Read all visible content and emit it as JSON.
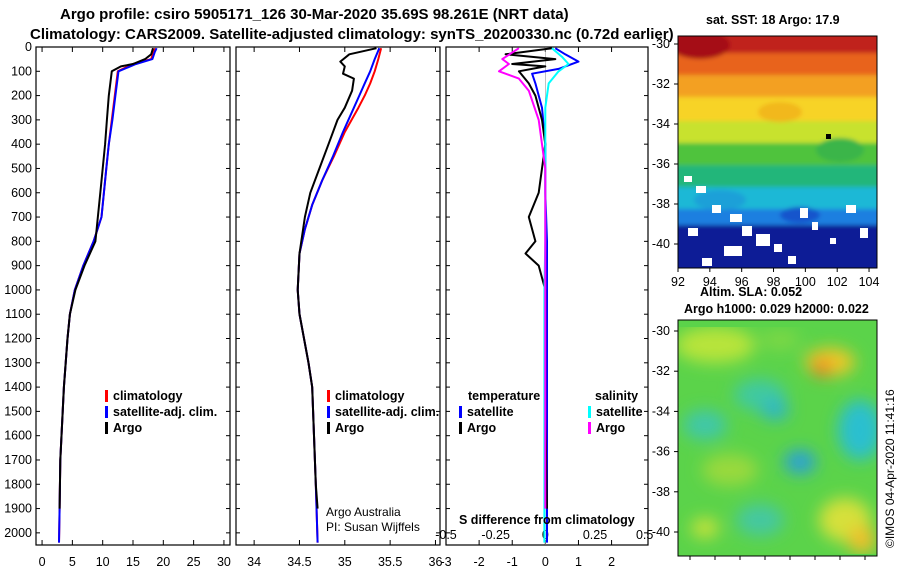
{
  "header": {
    "title_line1": "Argo profile: csiro 5905171_126 30-Mar-2020 35.69S 98.261E (NRT data)",
    "title_line2": "Climatology: CARS2009. Satellite-adjusted climatology: synTS_20200330.nc (0.72d earlier)"
  },
  "colors": {
    "climatology": "#ff0000",
    "satellite_adj": "#0000ff",
    "argo": "#000000",
    "sal_satellite": "#00ffff",
    "sal_argo": "#ff00ff"
  },
  "chart_data": [
    {
      "type": "line",
      "name": "temperature-profile",
      "xlabel": "",
      "ylabel": "",
      "xlim": [
        -1,
        31
      ],
      "ylim": [
        2050,
        0
      ],
      "xticks": [
        "0",
        "5",
        "10",
        "15",
        "20",
        "25",
        "30"
      ],
      "yticks": [
        "0",
        "100",
        "200",
        "300",
        "400",
        "500",
        "600",
        "700",
        "800",
        "900",
        "1000",
        "1100",
        "1200",
        "1300",
        "1400",
        "1500",
        "1600",
        "1700",
        "1800",
        "1900",
        "2000"
      ],
      "legend": [
        "climatology",
        "satellite-adj. clim.",
        "Argo"
      ],
      "series": [
        {
          "name": "climatology",
          "color": "#ff0000",
          "x": [
            18.6,
            18.4,
            18.0,
            15.0,
            12.5,
            12.0,
            11.5,
            11.0,
            10.6,
            10.2,
            9.8,
            8.5,
            6.8,
            5.4,
            4.6,
            4.2,
            3.9,
            3.6,
            3.4,
            3.2,
            3.0,
            2.9,
            2.8
          ],
          "y": [
            5,
            20,
            50,
            70,
            100,
            200,
            300,
            400,
            500,
            600,
            700,
            800,
            900,
            1000,
            1100,
            1200,
            1300,
            1400,
            1500,
            1600,
            1700,
            1900,
            2040
          ]
        },
        {
          "name": "satellite-adj. clim.",
          "color": "#0000ff",
          "x": [
            18.9,
            18.6,
            18.2,
            15.5,
            12.6,
            12.1,
            11.6,
            11.0,
            10.6,
            10.2,
            9.8,
            8.5,
            6.8,
            5.4,
            4.6,
            4.2,
            3.9,
            3.6,
            3.4,
            3.2,
            3.0,
            2.9,
            2.8
          ],
          "y": [
            5,
            20,
            50,
            70,
            100,
            200,
            300,
            400,
            500,
            600,
            700,
            800,
            900,
            1000,
            1100,
            1200,
            1300,
            1400,
            1500,
            1600,
            1700,
            1900,
            2040
          ]
        },
        {
          "name": "Argo",
          "color": "#000000",
          "x": [
            18.3,
            18.0,
            17.0,
            15.0,
            13.0,
            11.5,
            11.0,
            10.7,
            10.4,
            10.0,
            9.6,
            8.8,
            7.0,
            5.5,
            4.6,
            4.2,
            3.9,
            3.6,
            3.4,
            3.2,
            3.0,
            2.9
          ],
          "y": [
            5,
            30,
            50,
            70,
            80,
            100,
            200,
            300,
            400,
            500,
            600,
            800,
            900,
            1000,
            1100,
            1200,
            1300,
            1400,
            1500,
            1600,
            1700,
            1900
          ]
        }
      ]
    },
    {
      "type": "line",
      "name": "salinity-profile",
      "xlabel": "",
      "ylabel": "",
      "xlim": [
        33.8,
        36.05
      ],
      "ylim": [
        2050,
        0
      ],
      "xticks": [
        "34",
        "34.5",
        "35",
        "35.5",
        "36"
      ],
      "legend": [
        "climatology",
        "satellite-adj. clim.",
        "Argo"
      ],
      "annotations": [
        "Argo Australia",
        "PI: Susan Wijffels"
      ],
      "series": [
        {
          "name": "climatology",
          "color": "#ff0000",
          "x": [
            35.4,
            35.37,
            35.33,
            35.28,
            35.22,
            35.15,
            35.0,
            34.88,
            34.75,
            34.64,
            34.56,
            34.5,
            34.48,
            34.5,
            34.55,
            34.6,
            34.64,
            34.66,
            34.68,
            34.7
          ],
          "y": [
            5,
            50,
            100,
            150,
            200,
            250,
            350,
            450,
            550,
            650,
            750,
            850,
            1000,
            1100,
            1200,
            1300,
            1400,
            1600,
            1800,
            2040
          ]
        },
        {
          "name": "satellite-adj. clim.",
          "color": "#0000ff",
          "x": [
            35.38,
            35.33,
            35.28,
            35.22,
            35.16,
            35.1,
            34.98,
            34.87,
            34.75,
            34.64,
            34.56,
            34.5,
            34.48,
            34.5,
            34.55,
            34.6,
            34.64,
            34.66,
            34.68,
            34.7
          ],
          "y": [
            5,
            50,
            100,
            150,
            200,
            250,
            350,
            450,
            550,
            650,
            750,
            850,
            1000,
            1100,
            1200,
            1300,
            1400,
            1600,
            1800,
            2040
          ]
        },
        {
          "name": "Argo",
          "color": "#000000",
          "x": [
            35.35,
            35.05,
            34.95,
            35.0,
            34.98,
            35.1,
            35.08,
            35.0,
            34.92,
            34.82,
            34.72,
            34.62,
            34.56,
            34.5,
            34.48,
            34.5,
            34.55,
            34.6,
            34.64,
            34.66,
            34.68,
            34.7
          ],
          "y": [
            5,
            30,
            60,
            80,
            110,
            130,
            180,
            250,
            300,
            400,
            500,
            600,
            700,
            850,
            1000,
            1100,
            1200,
            1300,
            1400,
            1600,
            1800,
            1900
          ]
        }
      ]
    },
    {
      "type": "line",
      "name": "difference-from-climatology",
      "xlabel": "S difference from climatology",
      "xlim": [
        -3,
        3.1
      ],
      "ylim": [
        2050,
        0
      ],
      "xticks": [
        "-3",
        "-2",
        "-1",
        "0",
        "1",
        "2"
      ],
      "top_xticks": [
        "-0.5",
        "-0.25",
        "0",
        "0.25",
        "0.5"
      ],
      "legend": {
        "temperature_title": "temperature",
        "salinity_title": "salinity",
        "temperature_items": [
          "satellite",
          "Argo"
        ],
        "salinity_items": [
          "satellite",
          "Argo"
        ]
      },
      "series": [
        {
          "name": "temperature-satellite",
          "color": "#0000ff",
          "x": [
            0.3,
            0.6,
            1.0,
            0.4,
            -0.4,
            -0.3,
            -0.1,
            0.0,
            0.0,
            0.05,
            0.05,
            0.05,
            0.05,
            0.05,
            0.05,
            0.05
          ],
          "y": [
            5,
            30,
            60,
            90,
            110,
            150,
            250,
            400,
            600,
            800,
            1000,
            1200,
            1400,
            1600,
            1800,
            2040
          ]
        },
        {
          "name": "temperature-Argo",
          "color": "#000000",
          "x": [
            0.2,
            -1.2,
            0.3,
            -1.0,
            0.0,
            -0.8,
            -0.5,
            -0.3,
            -0.1,
            0.0,
            -0.2,
            -0.5,
            -0.3,
            -0.6,
            -0.2,
            0.0,
            0.0,
            0.05
          ],
          "y": [
            5,
            30,
            50,
            70,
            80,
            100,
            150,
            200,
            300,
            400,
            600,
            700,
            800,
            850,
            900,
            1000,
            1500,
            1900
          ]
        },
        {
          "name": "salinity-satellite",
          "color": "#00ffff",
          "x": [
            0.2,
            0.5,
            0.7,
            0.4,
            0.1,
            0.0,
            0.0,
            0.0,
            0.0,
            -0.03,
            -0.03,
            -0.03,
            -0.03,
            -0.03,
            -0.03
          ],
          "y": [
            5,
            40,
            70,
            100,
            150,
            250,
            400,
            600,
            800,
            1000,
            1200,
            1400,
            1600,
            1800,
            2040
          ]
        },
        {
          "name": "salinity-Argo",
          "color": "#ff00ff",
          "x": [
            -0.8,
            -1.3,
            -1.1,
            -1.4,
            -0.8,
            -0.5,
            -0.2,
            0.0,
            0.0,
            0.0,
            0.0,
            0.0,
            0.0
          ],
          "y": [
            5,
            50,
            70,
            100,
            130,
            180,
            300,
            500,
            700,
            900,
            1200,
            1500,
            1900
          ]
        }
      ]
    },
    {
      "type": "heatmap",
      "name": "sst-map",
      "title": "sat. SST: 18 Argo: 17.9",
      "xticks": [
        "92",
        "94",
        "96",
        "98",
        "100",
        "102",
        "104"
      ],
      "yticks": [
        "-30",
        "-32",
        "-34",
        "-36",
        "-38",
        "-40"
      ]
    },
    {
      "type": "heatmap",
      "name": "sla-map",
      "title": "Altim. SLA: 0.052",
      "subtitle": "Argo h1000: 0.029 h2000: 0.022",
      "yticks": [
        "-30",
        "-32",
        "-34",
        "-36",
        "-38",
        "-40"
      ]
    }
  ],
  "footer": {
    "credit": "©IMOS 04-Apr-2020 11:41:16"
  }
}
